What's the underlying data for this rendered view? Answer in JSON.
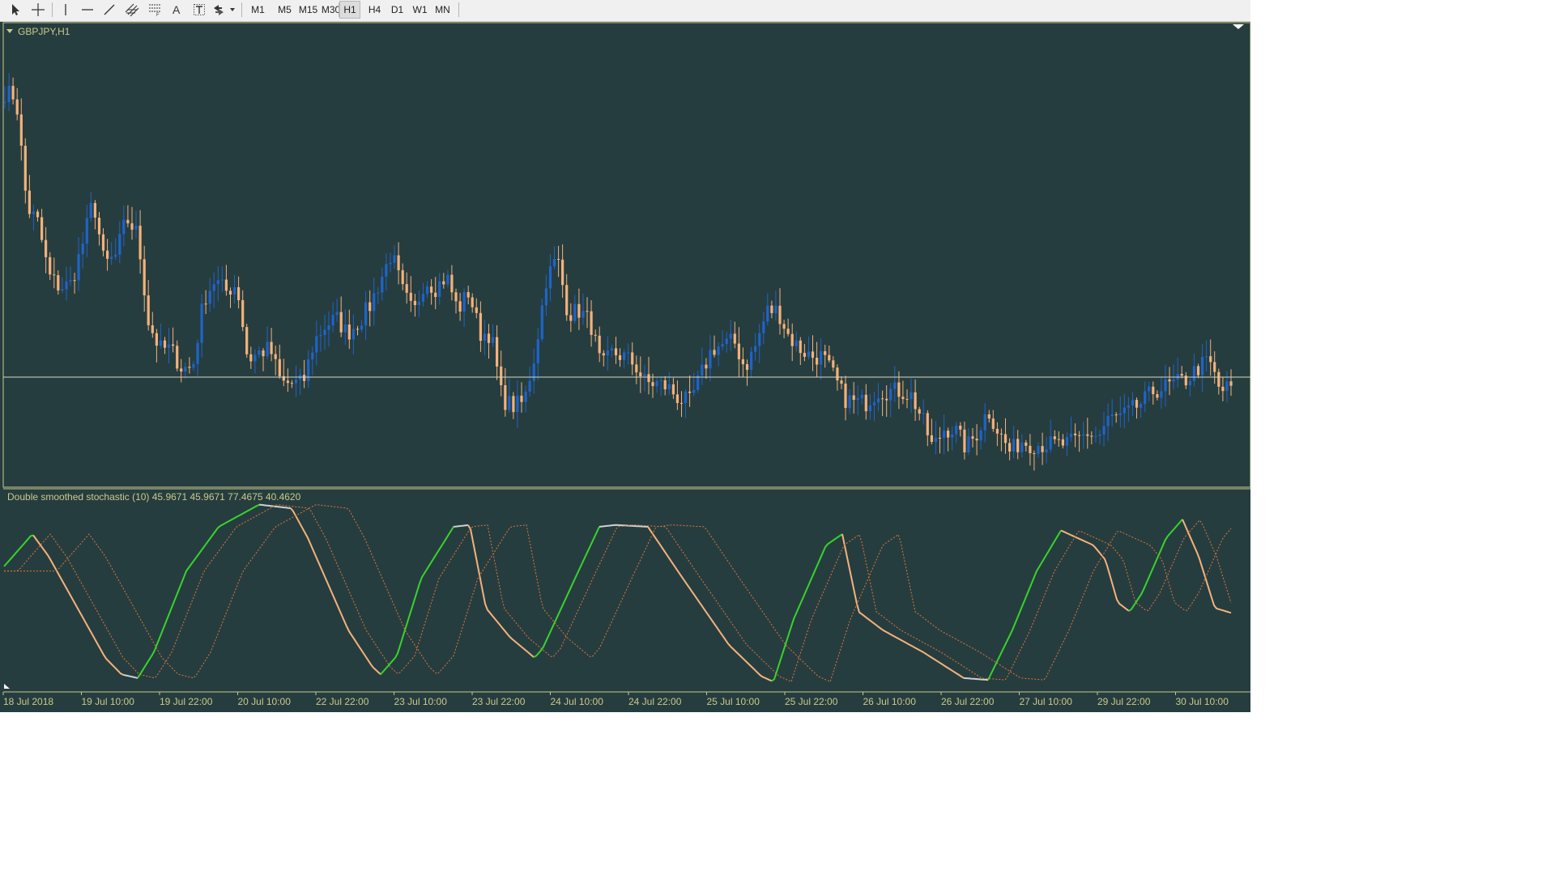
{
  "toolbar": {
    "tools": [
      {
        "name": "cursor-tool-icon"
      },
      {
        "name": "crosshair-tool-icon"
      },
      {
        "name": "vertical-line-tool-icon"
      },
      {
        "name": "horizontal-line-tool-icon"
      },
      {
        "name": "trendline-tool-icon"
      },
      {
        "name": "equidistant-channel-tool-icon"
      },
      {
        "name": "fibonacci-tool-icon"
      },
      {
        "name": "text-tool-icon"
      },
      {
        "name": "text-label-tool-icon"
      },
      {
        "name": "arrows-tool-dropdown-icon"
      }
    ],
    "timeframes": [
      "M1",
      "M5",
      "M15",
      "M30",
      "H1",
      "H4",
      "D1",
      "W1",
      "MN"
    ],
    "active_timeframe": "H1"
  },
  "chart": {
    "symbol_label": "GBPJPY,H1",
    "indicator_label": "Double smoothed stochastic (10) 45.9671 45.9671 77.4675 40.4620",
    "time_labels": [
      "18 Jul 2018",
      "19 Jul 10:00",
      "19 Jul 22:00",
      "20 Jul 10:00",
      "22 Jul 22:00",
      "23 Jul 10:00",
      "23 Jul 22:00",
      "24 Jul 10:00",
      "24 Jul 22:00",
      "25 Jul 10:00",
      "25 Jul 22:00",
      "26 Jul 10:00",
      "26 Jul 22:00",
      "27 Jul 10:00",
      "29 Jul 22:00",
      "30 Jul 10:00"
    ],
    "colors": {
      "background": "#263d3f",
      "bull": "#1e64c8",
      "bear": "#f4b27a",
      "fg": "#c9c98a",
      "rising": "#37d42a",
      "falling": "#f4b27a",
      "flat": "#d0d0d0",
      "signal": "#e0753a"
    }
  },
  "chart_data": {
    "type": "candlestick",
    "symbol": "GBPJPY",
    "timeframe": "H1",
    "price_pivots": [
      100,
      99,
      70,
      66,
      52,
      49,
      50,
      60,
      72,
      55,
      57,
      67,
      63,
      40,
      33,
      33,
      28,
      28,
      46,
      51,
      48,
      50,
      30,
      32,
      33,
      24,
      24,
      24,
      35,
      39,
      41,
      37,
      40,
      44,
      51,
      58,
      48,
      42,
      51,
      49,
      52,
      43,
      48,
      37,
      37,
      20,
      18,
      19,
      32,
      51,
      57,
      42,
      43,
      40,
      28,
      32,
      31,
      29,
      24,
      24,
      23,
      20,
      19,
      26,
      33,
      34,
      35,
      28,
      34,
      43,
      43,
      36,
      33,
      31,
      31,
      26,
      20,
      19,
      19,
      22,
      22,
      22,
      21,
      15,
      7,
      12,
      12,
      7,
      11,
      17,
      11,
      6,
      9,
      8,
      8,
      8,
      8,
      9,
      11,
      10,
      15,
      15,
      17,
      19,
      22,
      23,
      24,
      25,
      28,
      30,
      22,
      23
    ],
    "current_price_line_level": 23,
    "stochastic": {
      "name": "Double smoothed stochastic",
      "period": 10,
      "values": [
        45.9671,
        45.9671,
        77.4675,
        40.462
      ],
      "range": [
        0,
        100
      ]
    }
  }
}
